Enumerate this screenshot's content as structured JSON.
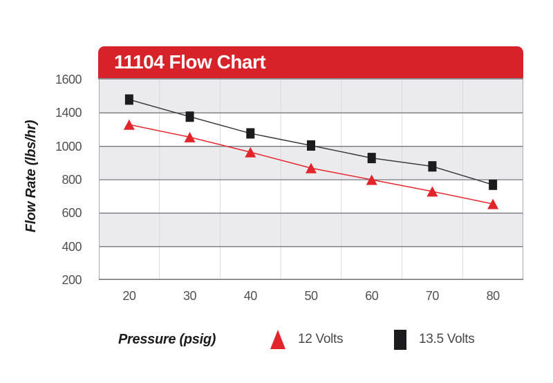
{
  "header": {
    "title": "11104 Flow Chart"
  },
  "colors": {
    "accent_red": "#d7222a",
    "marker_red": "#e2252b",
    "marker_black": "#1c1c1e",
    "line_red": "#e5262d",
    "line_black": "#3b3b3e",
    "band_gray": "#ebebee",
    "grid_h": "#77777c",
    "grid_v": "#d9d9dd",
    "plot_border": "#a9a9ad",
    "tick_text": "#515154",
    "axis_title_text": "#1b1b1d",
    "legend_text": "#48484b"
  },
  "chart_data": {
    "type": "line",
    "title": "11104 Flow Chart",
    "xlabel": "Pressure (psig)",
    "ylabel": "Flow Rate (lbs/hr)",
    "categories": [
      20,
      30,
      40,
      50,
      60,
      70,
      80
    ],
    "x_tick_labels": [
      "20",
      "30",
      "40",
      "50",
      "60",
      "70",
      "80"
    ],
    "y_tick_labels_displayed": [
      "1600",
      "1400",
      "1000",
      "800",
      "600",
      "400",
      "200"
    ],
    "series": [
      {
        "name": "12 Volts",
        "marker": "triangle",
        "color": "#e2252b",
        "values": [
          1260,
          1110,
          965,
          870,
          800,
          730,
          655
        ]
      },
      {
        "name": "13.5 Volts",
        "marker": "square",
        "color": "#1c1c1e",
        "values": [
          1480,
          1355,
          1155,
          1010,
          930,
          880,
          770
        ]
      }
    ],
    "grid": true,
    "plot_bands_alternating": true,
    "legend_position": "bottom"
  }
}
